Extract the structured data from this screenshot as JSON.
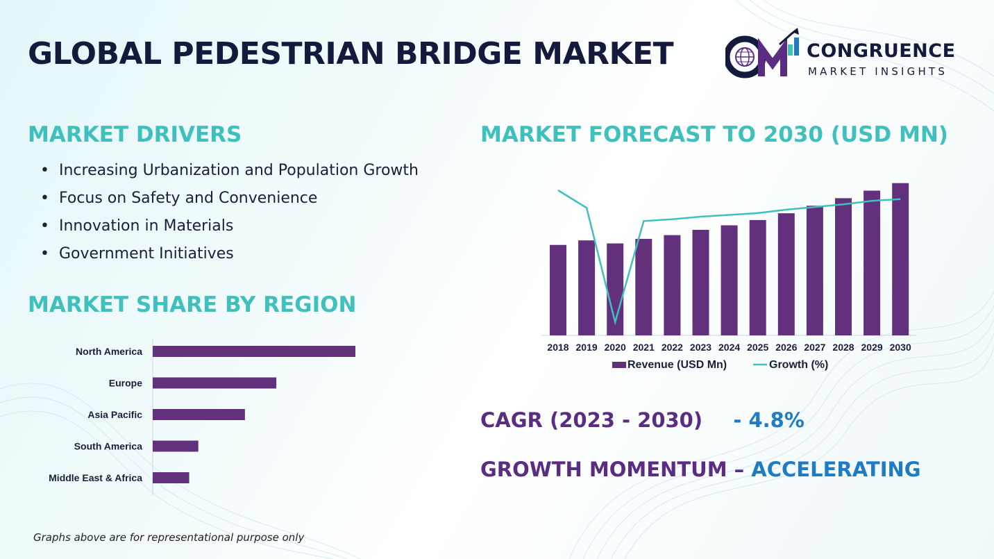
{
  "title": "GLOBAL PEDESTRIAN BRIDGE MARKET",
  "logo": {
    "monogram": "CM",
    "name": "CONGRUENCE",
    "subtitle": "MARKET INSIGHTS",
    "icon": "globe-icon"
  },
  "drivers": {
    "heading": "MARKET DRIVERS",
    "items": [
      "Increasing Urbanization and Population Growth",
      "Focus on Safety and Convenience",
      "Innovation in Materials",
      "Government Initiatives"
    ]
  },
  "region": {
    "heading": "MARKET SHARE BY REGION"
  },
  "forecast": {
    "heading": "MARKET FORECAST TO 2030 (USD MN)"
  },
  "stats": {
    "cagr_label": "CAGR (2023 - 2030)",
    "cagr_value": "- 4.8%",
    "momentum_label": "GROWTH MOMENTUM –",
    "momentum_value": "ACCELERATING"
  },
  "footnote": "Graphs above are for representational purpose only",
  "colors": {
    "bar": "#62307d",
    "line": "#3fc0bd",
    "heading": "#3fc0bd",
    "title": "#141a3c",
    "accent_blue": "#1f7cc4"
  },
  "chart_data": [
    {
      "type": "bar",
      "orientation": "horizontal",
      "title": "",
      "categories": [
        "North America",
        "Europe",
        "Asia Pacific",
        "South America",
        "Middle East & Africa"
      ],
      "values": [
        100,
        61,
        45.5,
        22.5,
        18
      ]
    },
    {
      "type": "bar",
      "title": "",
      "categories": [
        "2018",
        "2019",
        "2020",
        "2021",
        "2022",
        "2023",
        "2024",
        "2025",
        "2026",
        "2027",
        "2028",
        "2029",
        "2030"
      ],
      "series": [
        {
          "name": "Revenue (USD Mn)",
          "type": "bar",
          "values": [
            60,
            63,
            61,
            64,
            66.5,
            70,
            73,
            76.5,
            81,
            86,
            91,
            96,
            101
          ]
        },
        {
          "name": "Growth (%)",
          "type": "line",
          "values": [
            1.8,
            1.6,
            0.3,
            1.45,
            1.47,
            1.5,
            1.52,
            1.54,
            1.58,
            1.61,
            1.64,
            1.68,
            1.7
          ]
        }
      ],
      "legend": "bottom"
    }
  ]
}
